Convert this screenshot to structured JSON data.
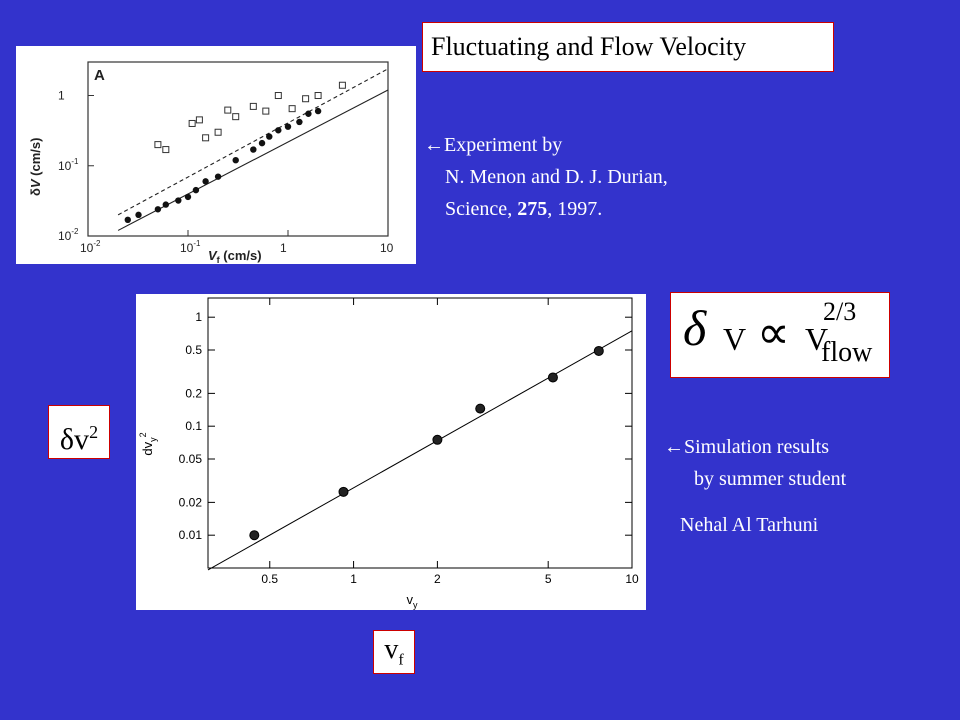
{
  "title": "Fluctuating and Flow Velocity",
  "experiment_caption": {
    "line1": "←Experiment by",
    "line2": "N. Menon and D. J. Durian,",
    "line3_prefix": "Science, ",
    "line3_bold": "275",
    "line3_suffix": ", 1997."
  },
  "simulation_caption": {
    "line1": "←Simulation results",
    "line2": "by summer student",
    "line3": "Nehal Al Tarhuni"
  },
  "formula": {
    "delta": "δ",
    "v": "V",
    "propto": "∝",
    "v2": "V",
    "exponent": "2/3",
    "subscript": "flow"
  },
  "side_labels": {
    "dv2_base": "δv",
    "dv2_sup": "2",
    "vf_base": "v",
    "vf_sub": "f"
  },
  "colors": {
    "background": "#3333cc",
    "frame": "#cc0000"
  },
  "chart_data": [
    {
      "type": "scatter",
      "panel_label": "A",
      "xlabel_base": "V",
      "xlabel_sub": "f",
      "xlabel_unit": " (cm/s)",
      "ylabel_prefix": "δ",
      "ylabel_base": "V",
      "ylabel_unit": " (cm/s)",
      "x_scale": "log",
      "y_scale": "log",
      "xlim": [
        0.01,
        10
      ],
      "ylim": [
        0.01,
        3
      ],
      "x_tick_labels": [
        {
          "base": "10",
          "exp": "-2"
        },
        {
          "base": "10",
          "exp": "-1"
        },
        {
          "base": "1",
          "exp": ""
        },
        {
          "base": "10",
          "exp": ""
        }
      ],
      "y_tick_labels": [
        {
          "base": "10",
          "exp": "-2"
        },
        {
          "base": "10",
          "exp": "-1"
        },
        {
          "base": "1",
          "exp": ""
        }
      ],
      "series": [
        {
          "marker": "open-square",
          "line": "dashed",
          "points": [
            [
              0.05,
              0.2
            ],
            [
              0.06,
              0.17
            ],
            [
              0.11,
              0.4
            ],
            [
              0.13,
              0.45
            ],
            [
              0.15,
              0.25
            ],
            [
              0.2,
              0.3
            ],
            [
              0.25,
              0.62
            ],
            [
              0.3,
              0.5
            ],
            [
              0.45,
              0.7
            ],
            [
              0.6,
              0.6
            ],
            [
              0.8,
              1.0
            ],
            [
              1.1,
              0.65
            ],
            [
              1.5,
              0.9
            ],
            [
              2.0,
              1.0
            ],
            [
              3.5,
              1.4
            ]
          ],
          "fit": [
            [
              0.02,
              0.02
            ],
            [
              10,
              2.4
            ]
          ]
        },
        {
          "marker": "filled",
          "line": "solid",
          "points": [
            [
              0.025,
              0.017
            ],
            [
              0.032,
              0.02
            ],
            [
              0.05,
              0.024
            ],
            [
              0.06,
              0.028
            ],
            [
              0.08,
              0.032
            ],
            [
              0.1,
              0.036
            ],
            [
              0.12,
              0.045
            ],
            [
              0.15,
              0.06
            ],
            [
              0.2,
              0.07
            ],
            [
              0.3,
              0.12
            ],
            [
              0.45,
              0.17
            ],
            [
              0.55,
              0.21
            ],
            [
              0.65,
              0.26
            ],
            [
              0.8,
              0.32
            ],
            [
              1.0,
              0.36
            ],
            [
              1.3,
              0.42
            ],
            [
              1.6,
              0.55
            ],
            [
              2.0,
              0.6
            ]
          ],
          "fit": [
            [
              0.02,
              0.012
            ],
            [
              10,
              1.2
            ]
          ]
        }
      ]
    },
    {
      "type": "scatter",
      "xlabel": "v",
      "xlabel_sub": "y",
      "ylabel": "dv",
      "ylabel_sub": "y",
      "ylabel_sup": "2",
      "x_scale": "log",
      "y_scale": "log",
      "xlim": [
        0.3,
        10
      ],
      "ylim": [
        0.005,
        1.5
      ],
      "x_ticks": [
        0.5,
        1,
        2,
        5,
        10
      ],
      "x_tick_labels": [
        "0.5",
        "1",
        "2",
        "5",
        "10"
      ],
      "y_ticks": [
        0.01,
        0.02,
        0.05,
        0.1,
        0.2,
        0.5,
        1
      ],
      "y_tick_labels": [
        "0.01",
        "0.02",
        "0.05",
        "0.1",
        "0.2",
        "0.5",
        "1"
      ],
      "points": [
        [
          0.44,
          0.01
        ],
        [
          0.92,
          0.025
        ],
        [
          2.0,
          0.075
        ],
        [
          2.85,
          0.145
        ],
        [
          5.2,
          0.28
        ],
        [
          7.6,
          0.49
        ]
      ],
      "fit_line": [
        [
          0.3,
          0.0048
        ],
        [
          10,
          0.75
        ]
      ]
    }
  ]
}
